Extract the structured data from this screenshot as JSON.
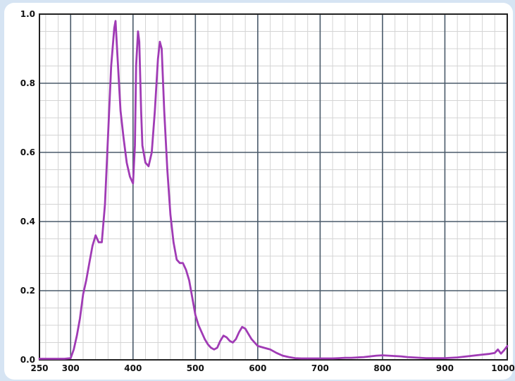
{
  "chart_data": {
    "type": "line",
    "title": "",
    "xlabel": "",
    "ylabel": "",
    "xlim": [
      250,
      1000
    ],
    "ylim": [
      0,
      1.0
    ],
    "x_ticks": [
      250,
      300,
      400,
      500,
      600,
      700,
      800,
      900,
      1000
    ],
    "x_tick_labels": [
      "250",
      "300",
      "400",
      "500",
      "600",
      "700",
      "800",
      "900",
      "1000"
    ],
    "y_ticks": [
      0.0,
      0.2,
      0.4,
      0.6,
      0.8,
      1.0
    ],
    "y_tick_labels": [
      "0.0",
      "0.2",
      "0.4",
      "0.6",
      "0.8",
      "1.0"
    ],
    "grid": true,
    "minor_grid": true,
    "line_color": "#a03bb5",
    "series": [
      {
        "x": [
          250,
          260,
          270,
          280,
          290,
          300,
          305,
          310,
          315,
          320,
          325,
          330,
          335,
          340,
          345,
          350,
          355,
          360,
          365,
          370,
          372,
          375,
          380,
          385,
          390,
          395,
          400,
          403,
          405,
          408,
          410,
          413,
          415,
          420,
          425,
          430,
          435,
          440,
          443,
          446,
          450,
          455,
          460,
          465,
          470,
          475,
          480,
          485,
          490,
          495,
          500,
          505,
          510,
          515,
          520,
          525,
          530,
          535,
          540,
          545,
          550,
          555,
          560,
          565,
          570,
          575,
          580,
          585,
          590,
          595,
          600,
          610,
          620,
          630,
          640,
          650,
          660,
          670,
          680,
          690,
          700,
          710,
          720,
          730,
          740,
          750,
          760,
          770,
          780,
          790,
          800,
          810,
          820,
          830,
          840,
          850,
          860,
          870,
          880,
          890,
          900,
          910,
          920,
          930,
          940,
          950,
          960,
          970,
          980,
          985,
          990,
          995,
          1000
        ],
        "y": [
          0.003,
          0.003,
          0.003,
          0.003,
          0.003,
          0.005,
          0.03,
          0.07,
          0.12,
          0.19,
          0.23,
          0.28,
          0.33,
          0.36,
          0.34,
          0.34,
          0.45,
          0.65,
          0.85,
          0.96,
          0.98,
          0.88,
          0.72,
          0.64,
          0.57,
          0.53,
          0.51,
          0.62,
          0.85,
          0.95,
          0.92,
          0.72,
          0.62,
          0.57,
          0.56,
          0.6,
          0.72,
          0.87,
          0.92,
          0.9,
          0.72,
          0.55,
          0.42,
          0.34,
          0.29,
          0.28,
          0.28,
          0.26,
          0.23,
          0.18,
          0.13,
          0.1,
          0.08,
          0.06,
          0.045,
          0.035,
          0.03,
          0.035,
          0.055,
          0.07,
          0.065,
          0.055,
          0.05,
          0.06,
          0.08,
          0.095,
          0.09,
          0.075,
          0.06,
          0.05,
          0.04,
          0.035,
          0.03,
          0.02,
          0.012,
          0.008,
          0.005,
          0.004,
          0.004,
          0.004,
          0.004,
          0.004,
          0.004,
          0.005,
          0.006,
          0.006,
          0.007,
          0.008,
          0.01,
          0.012,
          0.013,
          0.012,
          0.011,
          0.01,
          0.008,
          0.007,
          0.006,
          0.005,
          0.005,
          0.005,
          0.005,
          0.006,
          0.007,
          0.009,
          0.011,
          0.013,
          0.015,
          0.017,
          0.02,
          0.03,
          0.018,
          0.028,
          0.04
        ]
      }
    ]
  }
}
